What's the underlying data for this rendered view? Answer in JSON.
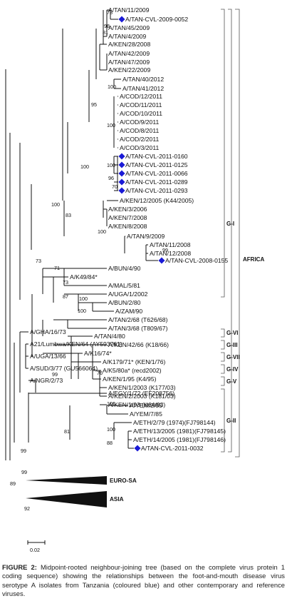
{
  "figure": {
    "caption_label": "FIGURE 2:",
    "caption_text": "Midpoint-rooted neighbour-joining tree (based on the complete virus protein 1 coding sequence) showing the relationships between the foot-and-mouth disease virus serotype A isolates from Tanzania (coloured blue) and other contemporary and reference viruses.",
    "scale_bar_label": "0.02",
    "highlight_color": "#1a1ad6"
  },
  "groups": [
    "G-I",
    "G-VI",
    "G-III",
    "G-VII",
    "G-IV",
    "G-V",
    "G-II"
  ],
  "region_label": "AFRICA",
  "collapsed_clades": [
    "EURO-SA",
    "ASIA"
  ],
  "leaves": [
    {
      "label": "A/TAN/11/2009",
      "highlight": false
    },
    {
      "label": "A/TAN-CVL-2009-0052",
      "highlight": true
    },
    {
      "label": "A/TAN/45/2009",
      "highlight": false
    },
    {
      "label": "A/TAN/4/2009",
      "highlight": false
    },
    {
      "label": "A/KEN/28/2008",
      "highlight": false
    },
    {
      "label": "A/TAN/42/2009",
      "highlight": false
    },
    {
      "label": "A/TAN/47/2009",
      "highlight": false
    },
    {
      "label": "A/KEN/22/2009",
      "highlight": false
    },
    {
      "label": "A/TAN/40/2012",
      "highlight": false
    },
    {
      "label": "A/TAN/41/2012",
      "highlight": false
    },
    {
      "label": "A/COD/12/2011",
      "highlight": false
    },
    {
      "label": "A/COD/11/2011",
      "highlight": false
    },
    {
      "label": "A/COD/10/2011",
      "highlight": false
    },
    {
      "label": "A/COD/9/2011",
      "highlight": false
    },
    {
      "label": "A/COD/8/2011",
      "highlight": false
    },
    {
      "label": "A/COD/2/2011",
      "highlight": false
    },
    {
      "label": "A/COD/3/2011",
      "highlight": false
    },
    {
      "label": "A/TAN-CVL-2011-0160",
      "highlight": true
    },
    {
      "label": "A/TAN-CVL-2011-0125",
      "highlight": true
    },
    {
      "label": "A/TAN-CVL-2011-0066",
      "highlight": true
    },
    {
      "label": "A/TAN-CVL-2011-0289",
      "highlight": true
    },
    {
      "label": "A/TAN-CVL-2011-0293",
      "highlight": true
    },
    {
      "label": "A/KEN/12/2005 (K44/2005)",
      "highlight": false
    },
    {
      "label": "A/KEN/3/2006",
      "highlight": false
    },
    {
      "label": "A/KEN/7/2008",
      "highlight": false
    },
    {
      "label": "A/KEN/8/2008",
      "highlight": false
    },
    {
      "label": "A/TAN/9/2009",
      "highlight": false
    },
    {
      "label": "A/TAN/11/2008",
      "highlight": false
    },
    {
      "label": "A/TAN/12/2008",
      "highlight": false
    },
    {
      "label": "A/TAN-CVL-2008-0155",
      "highlight": true
    },
    {
      "label": "A/BUN/4/90",
      "highlight": false
    },
    {
      "label": "A/K49/84*",
      "highlight": false
    },
    {
      "label": "A/MAL/5/81",
      "highlight": false
    },
    {
      "label": "A/UGA/1/2002",
      "highlight": false
    },
    {
      "label": "A/BUN/2/80",
      "highlight": false
    },
    {
      "label": "A/ZAM/90",
      "highlight": false
    },
    {
      "label": "A/TAN/2/68 (T626/68)",
      "highlight": false
    },
    {
      "label": "A/TAN/3/68 (T809/67)",
      "highlight": false
    },
    {
      "label": "A/TAN/4/80",
      "highlight": false
    },
    {
      "label": "A/KEN/42/66 (K18/66)",
      "highlight": false
    },
    {
      "label": "A/K16/74*",
      "highlight": false
    },
    {
      "label": "A/K179/71* (KEN/1/76)",
      "highlight": false
    },
    {
      "label": "A/K5/80a* (recd2002)",
      "highlight": false
    },
    {
      "label": "A/KEN/1/95 (K4/95)",
      "highlight": false
    },
    {
      "label": "A/KEN/1/2003 (K177/03)",
      "highlight": false
    },
    {
      "label": "A/KEN/2/2003 (K181/03)",
      "highlight": false
    },
    {
      "label": "A/KEN/1/93 (K64/93)",
      "highlight": false
    },
    {
      "label": "A/GHA/16/73",
      "highlight": false
    },
    {
      "label": "A21/Lumbwa/KEN/64 (AY593761)",
      "highlight": false
    },
    {
      "label": "A/UGA/13/66",
      "highlight": false
    },
    {
      "label": "A/SUD/3/77 (GU566064)",
      "highlight": false
    },
    {
      "label": "A/NGR/2/73",
      "highlight": false
    },
    {
      "label": "A/EGY/1/72 (EF208756)",
      "highlight": false
    },
    {
      "label": "A/YEM/2/85",
      "highlight": false
    },
    {
      "label": "A/YEM/7/85",
      "highlight": false
    },
    {
      "label": "A/ETH/2/79 (1974)(FJ798144)",
      "highlight": false
    },
    {
      "label": "A/ETH/13/2005 (1981)(FJ798145)",
      "highlight": false
    },
    {
      "label": "A/ETH/14/2005 (1981)(FJ798146)",
      "highlight": false
    },
    {
      "label": "A/TAN-CVL-2011-0032",
      "highlight": true
    }
  ],
  "bootstrap_values": [
    "78",
    "98",
    "81",
    "100",
    "95",
    "100",
    "100",
    "96",
    "70",
    "100",
    "83",
    "100",
    "99",
    "100",
    "73",
    "71",
    "73",
    "100",
    "100",
    "87",
    "99",
    "76",
    "99",
    "81",
    "100",
    "100",
    "88",
    "99",
    "89",
    "92"
  ]
}
